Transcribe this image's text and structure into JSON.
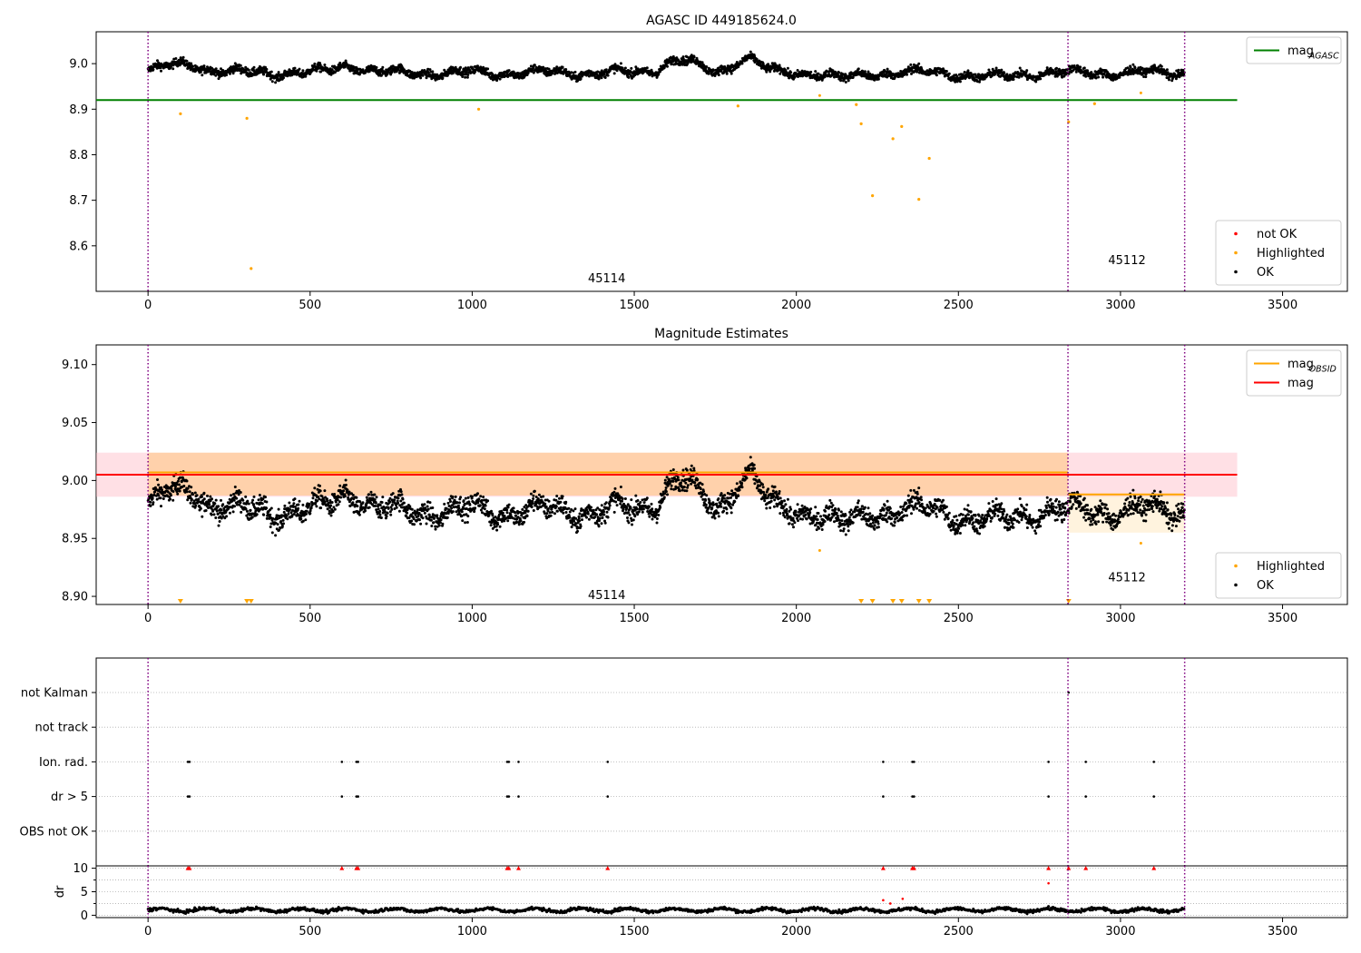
{
  "figure": {
    "title": "AGASC ID 449185624.0"
  },
  "chart_data": [
    {
      "id": "agasc",
      "type": "scatter",
      "title": "AGASC ID 449185624.0",
      "xlim": [
        -160,
        3700
      ],
      "ylim": [
        8.5,
        9.07
      ],
      "x_ticks": [
        0,
        500,
        1000,
        1500,
        2000,
        2500,
        3000,
        3500
      ],
      "x_tick_labels": [
        "0",
        "500",
        "1000",
        "1500",
        "2000",
        "2500",
        "3000",
        "3500"
      ],
      "y_ticks": [
        8.6,
        8.7,
        8.8,
        8.9,
        9.0
      ],
      "y_tick_labels": [
        "8.6",
        "8.7",
        "8.8",
        "8.9",
        "9.0"
      ],
      "obsid_boundaries": [
        0,
        2838,
        3198
      ],
      "obsid_labels": [
        {
          "text": "45114",
          "x": 1415,
          "y": 8.528
        },
        {
          "text": "45112",
          "x": 3020,
          "y": 8.568
        }
      ],
      "lines": [
        {
          "name": "mag",
          "name_sub": "AGASC",
          "color": "#008000",
          "x": [
            -160,
            3360
          ],
          "y": [
            8.92,
            8.92
          ]
        }
      ],
      "outliers": [
        {
          "x": 100,
          "y": 8.89
        },
        {
          "x": 305,
          "y": 8.88
        },
        {
          "x": 318,
          "y": 8.55
        },
        {
          "x": 1020,
          "y": 8.9
        },
        {
          "x": 1820,
          "y": 8.907
        },
        {
          "x": 2185,
          "y": 8.91
        },
        {
          "x": 2200,
          "y": 8.868
        },
        {
          "x": 2235,
          "y": 8.71
        },
        {
          "x": 2298,
          "y": 8.835
        },
        {
          "x": 2325,
          "y": 8.862
        },
        {
          "x": 2378,
          "y": 8.702
        },
        {
          "x": 2410,
          "y": 8.792
        },
        {
          "x": 2840,
          "y": 8.872
        },
        {
          "x": 2920,
          "y": 8.912
        }
      ],
      "legends": [
        {
          "position": "upper-right",
          "entries": [
            {
              "label": "mag",
              "sub": "AGASC",
              "kind": "line",
              "color": "#008000"
            }
          ]
        },
        {
          "position": "lower-right",
          "entries": [
            {
              "label": "not OK",
              "kind": "dot",
              "color": "#ff0000"
            },
            {
              "label": "Highlighted",
              "kind": "dot",
              "color": "#ffa500"
            },
            {
              "label": "OK",
              "kind": "dot",
              "color": "#000000"
            }
          ]
        }
      ],
      "series_colors": {
        "ok": "#000000",
        "highlighted": "#ffa500",
        "not_ok": "#ff0000",
        "boundary": "#800080"
      }
    },
    {
      "id": "estimates",
      "type": "scatter",
      "title": "Magnitude Estimates",
      "xlim": [
        -160,
        3700
      ],
      "ylim": [
        8.893,
        9.117
      ],
      "x_ticks": [
        0,
        500,
        1000,
        1500,
        2000,
        2500,
        3000,
        3500
      ],
      "x_tick_labels": [
        "0",
        "500",
        "1000",
        "1500",
        "2000",
        "2500",
        "3000",
        "3500"
      ],
      "y_ticks": [
        8.9,
        8.95,
        9.0,
        9.05,
        9.1
      ],
      "y_tick_labels": [
        "8.90",
        "8.95",
        "9.00",
        "9.05",
        "9.10"
      ],
      "obsid_boundaries": [
        0,
        2838,
        3198
      ],
      "obsid_labels": [
        {
          "text": "45114",
          "x": 1415,
          "y": 8.901
        },
        {
          "text": "45112",
          "x": 3020,
          "y": 8.916
        }
      ],
      "bands": [
        {
          "x": [
            -160,
            3360
          ],
          "y": [
            8.986,
            9.024
          ],
          "color": "#ffb6c1",
          "opacity": 0.42
        },
        {
          "x": [
            0,
            2838
          ],
          "y": [
            8.987,
            9.024
          ],
          "color": "#ffa500",
          "opacity": 0.25
        },
        {
          "x": [
            2838,
            3198
          ],
          "y": [
            8.955,
            8.988
          ],
          "color": "#ffa500",
          "opacity": 0.13
        }
      ],
      "lines": [
        {
          "name": "mag",
          "color": "#ff0000",
          "x": [
            -160,
            3360
          ],
          "y": [
            9.005,
            9.005
          ]
        },
        {
          "name": "mag",
          "name_sub": "OBSID",
          "color": "#ffa500",
          "x": [
            0,
            2838
          ],
          "y": [
            9.007,
            9.007
          ]
        },
        {
          "name": "mag",
          "name_sub": "OBSID",
          "color": "#ffa500",
          "x": [
            2838,
            3198
          ],
          "y": [
            8.988,
            8.988
          ]
        }
      ],
      "clipped_markers_x": [
        100,
        305,
        318,
        2200,
        2235,
        2298,
        2325,
        2378,
        2410,
        2840
      ],
      "legends": [
        {
          "position": "upper-right",
          "entries": [
            {
              "label": "mag",
              "sub": "OBSID",
              "kind": "line",
              "color": "#ffa500"
            },
            {
              "label": "mag",
              "kind": "line",
              "color": "#ff0000"
            }
          ]
        },
        {
          "position": "lower-right",
          "entries": [
            {
              "label": "Highlighted",
              "kind": "dot",
              "color": "#ffa500"
            },
            {
              "label": "OK",
              "kind": "dot",
              "color": "#000000"
            }
          ]
        }
      ]
    },
    {
      "id": "flags",
      "type": "scatter",
      "xlim": [
        -160,
        3700
      ],
      "categories": [
        "not Kalman",
        "not track",
        "Ion. rad.",
        "dr > 5",
        "OBS not OK"
      ],
      "events": {
        "Ion. rad.": [
          123,
          128,
          598,
          643,
          648,
          1108,
          1113,
          1143,
          1418,
          2268,
          2358,
          2363,
          2778,
          2893,
          3103
        ],
        "dr > 5": [
          123,
          128,
          598,
          643,
          648,
          1108,
          1113,
          1143,
          1418,
          2268,
          2358,
          2363,
          2778,
          2893,
          3103
        ],
        "not Kalman": [
          2840
        ]
      },
      "obsid_boundaries": [
        0,
        2838,
        3198
      ]
    },
    {
      "id": "dr",
      "type": "scatter",
      "ylabel": "dr",
      "xlim": [
        -160,
        3700
      ],
      "ylim": [
        -0.5,
        10.5
      ],
      "x_ticks": [
        0,
        500,
        1000,
        1500,
        2000,
        2500,
        3000,
        3500
      ],
      "x_tick_labels": [
        "0",
        "500",
        "1000",
        "1500",
        "2000",
        "2500",
        "3000",
        "3500"
      ],
      "y_ticks": [
        0,
        5,
        10
      ],
      "y_tick_labels": [
        "0",
        "5",
        "10"
      ],
      "clipped_markers_x": [
        123,
        128,
        598,
        643,
        648,
        1108,
        1113,
        1143,
        1418,
        2268,
        2358,
        2363,
        2778,
        2840,
        2893,
        3103
      ],
      "red_points": [
        {
          "x": 2268,
          "y": 3.2
        },
        {
          "x": 2290,
          "y": 2.5
        },
        {
          "x": 2328,
          "y": 3.5
        },
        {
          "x": 2778,
          "y": 6.8
        }
      ],
      "obsid_boundaries": [
        0,
        2838,
        3198
      ]
    }
  ]
}
